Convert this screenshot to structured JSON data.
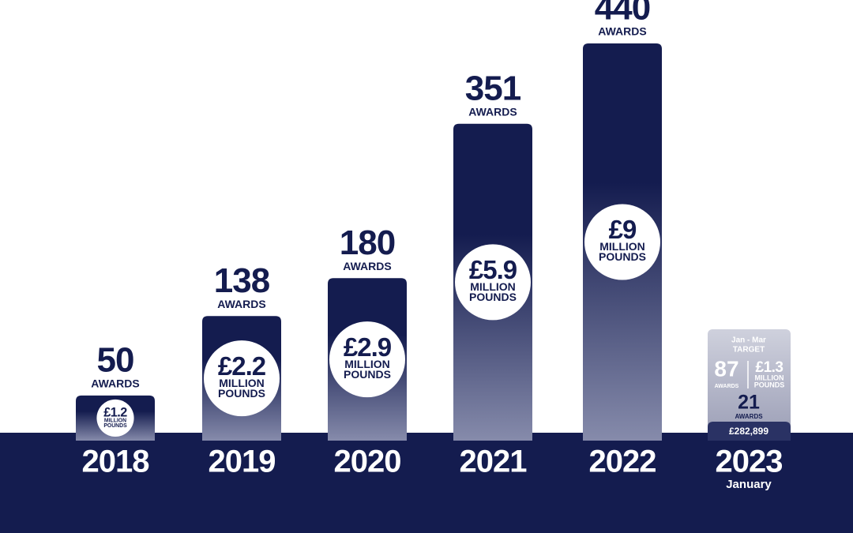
{
  "chart_data": {
    "type": "bar",
    "categories": [
      "2018",
      "2019",
      "2020",
      "2021",
      "2022"
    ],
    "values": [
      50,
      138,
      180,
      351,
      440
    ],
    "awards_label": "AWARDS",
    "funding": {
      "values": [
        1.2,
        2.2,
        2.9,
        5.9,
        9
      ],
      "value_labels": [
        "£1.2",
        "£2.2",
        "£2.9",
        "£5.9",
        "£9"
      ],
      "million_label": "MILLION",
      "pounds_label": "POUNDS"
    },
    "current": {
      "category": "2023",
      "note": "January",
      "period": "Jan - Mar",
      "target_label": "TARGET",
      "target_awards": 87,
      "target_funding": "£1.3",
      "awards": 21,
      "funding": "£282,899"
    },
    "colors": {
      "bar": "#141c4f",
      "bar_fade": "#868bab",
      "circle": "#ffffff",
      "band": "#141c4f",
      "card": "#cfd1dd",
      "card_fade": "#9a9db5"
    }
  }
}
